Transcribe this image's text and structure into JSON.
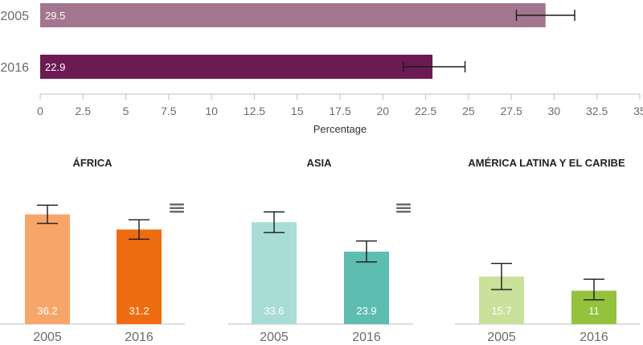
{
  "chart_data": [
    {
      "type": "bar",
      "orientation": "horizontal",
      "categories": [
        "2005",
        "2016"
      ],
      "values": [
        29.5,
        22.9
      ],
      "error_low": [
        27.8,
        21.2
      ],
      "error_high": [
        31.2,
        24.8
      ],
      "colors": [
        "#a3768f",
        "#6b1a52"
      ],
      "xlabel": "Percentage",
      "xlim": [
        0,
        35
      ],
      "xticks": [
        "0",
        "2.5",
        "5",
        "7.5",
        "10",
        "12.5",
        "15",
        "17.5",
        "20",
        "22.5",
        "25",
        "27.5",
        "30",
        "32.5",
        "35"
      ],
      "grid": false
    },
    {
      "type": "bar",
      "title": "ÁFRICA",
      "categories": [
        "2005",
        "2016"
      ],
      "values": [
        36.2,
        31.2
      ],
      "error_low": [
        33.2,
        28.0
      ],
      "error_high": [
        39.2,
        34.4
      ],
      "colors": [
        "#f7a66a",
        "#ee6c10"
      ],
      "ylim": [
        0,
        45
      ]
    },
    {
      "type": "bar",
      "title": "ASIA",
      "categories": [
        "2005",
        "2016"
      ],
      "values": [
        33.6,
        23.9
      ],
      "error_low": [
        30.2,
        20.5
      ],
      "error_high": [
        37.0,
        27.4
      ],
      "colors": [
        "#a7ddd6",
        "#5cbdb0"
      ],
      "ylim": [
        0,
        45
      ]
    },
    {
      "type": "bar",
      "title": "AMÉRICA LATINA Y EL CARIBE",
      "categories": [
        "2005",
        "2016"
      ],
      "values": [
        15.7,
        11
      ],
      "error_low": [
        11.4,
        8.0
      ],
      "error_high": [
        20.0,
        14.8
      ],
      "colors": [
        "#c9e19b",
        "#94c23a"
      ],
      "ylim": [
        0,
        45
      ]
    }
  ],
  "menu_icon": "hamburger-menu-icon"
}
